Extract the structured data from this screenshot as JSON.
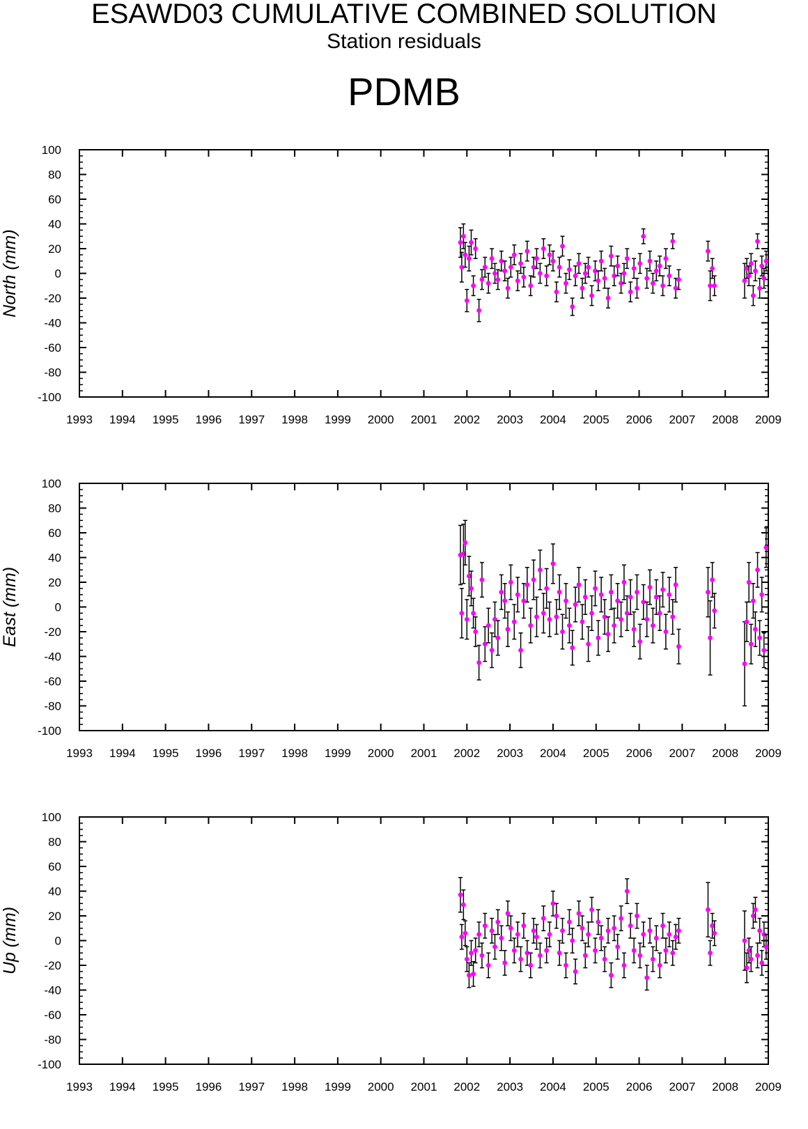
{
  "header": {
    "title": "ESAWD03 CUMULATIVE COMBINED SOLUTION",
    "subtitle": "Station residuals",
    "station": "PDMB"
  },
  "colors": {
    "point": "#ff00ff",
    "errorbar": "#000000",
    "axis": "#000000"
  },
  "chart_data": [
    {
      "type": "scatter",
      "component": "north",
      "ylabel": "North (mm)",
      "xlim": [
        1993,
        2009
      ],
      "ylim": [
        -100,
        100
      ],
      "xticks": [
        "1993",
        "1994",
        "1995",
        "1996",
        "1997",
        "1998",
        "1999",
        "2000",
        "2001",
        "2002",
        "2003",
        "2004",
        "2005",
        "2006",
        "2007",
        "2008",
        "2009"
      ],
      "yticks": [
        "100",
        "80",
        "60",
        "40",
        "20",
        "0",
        "-20",
        "-40",
        "-60",
        "-80",
        "-100"
      ],
      "grid": false,
      "series": [
        {
          "x": [
            2001.85,
            2001.88,
            2001.92,
            2001.96,
            2002.0,
            2002.05,
            2002.1,
            2002.15,
            2002.2,
            2002.28,
            2002.35,
            2002.42,
            2002.5,
            2002.58,
            2002.65,
            2002.72,
            2002.8,
            2002.88,
            2002.95,
            2003.02,
            2003.1,
            2003.18,
            2003.25,
            2003.32,
            2003.4,
            2003.48,
            2003.55,
            2003.62,
            2003.7,
            2003.78,
            2003.85,
            2003.92,
            2004.0,
            2004.08,
            2004.15,
            2004.22,
            2004.3,
            2004.38,
            2004.45,
            2004.52,
            2004.6,
            2004.68,
            2004.75,
            2004.82,
            2004.9,
            2004.98,
            2005.05,
            2005.12,
            2005.2,
            2005.28,
            2005.35,
            2005.42,
            2005.5,
            2005.58,
            2005.65,
            2005.72,
            2005.8,
            2005.88,
            2005.95,
            2006.02,
            2006.1,
            2006.18,
            2006.25,
            2006.32,
            2006.4,
            2006.48,
            2006.55,
            2006.62,
            2006.7,
            2006.78,
            2006.85,
            2006.92,
            2007.6,
            2007.65,
            2007.7,
            2007.75,
            2008.45,
            2008.5,
            2008.55,
            2008.6,
            2008.65,
            2008.7,
            2008.75,
            2008.8,
            2008.85,
            2008.9,
            2008.95
          ],
          "y": [
            25,
            5,
            30,
            15,
            -22,
            12,
            25,
            -10,
            20,
            -30,
            -5,
            5,
            -8,
            12,
            0,
            -5,
            10,
            2,
            -12,
            5,
            15,
            -6,
            8,
            -3,
            18,
            -10,
            5,
            12,
            0,
            20,
            -2,
            15,
            10,
            -15,
            5,
            22,
            -8,
            3,
            -27,
            -2,
            8,
            -12,
            0,
            5,
            -18,
            2,
            -6,
            10,
            -4,
            -20,
            14,
            -2,
            6,
            -8,
            0,
            12,
            -15,
            4,
            -12,
            8,
            30,
            -4,
            10,
            -8,
            2,
            6,
            -10,
            12,
            -2,
            26,
            -12,
            -5,
            18,
            -10,
            4,
            -10,
            -6,
            4,
            -2,
            8,
            -18,
            2,
            26,
            -12,
            6,
            -4,
            10
          ],
          "err": [
            12,
            12,
            10,
            10,
            9,
            10,
            10,
            8,
            8,
            9,
            8,
            8,
            8,
            8,
            8,
            8,
            8,
            8,
            8,
            8,
            8,
            8,
            8,
            8,
            8,
            8,
            8,
            8,
            8,
            8,
            8,
            8,
            8,
            8,
            8,
            8,
            8,
            8,
            7,
            8,
            8,
            8,
            8,
            8,
            8,
            8,
            8,
            8,
            8,
            8,
            8,
            8,
            8,
            8,
            8,
            8,
            8,
            8,
            8,
            8,
            6,
            8,
            8,
            8,
            8,
            8,
            8,
            8,
            8,
            6,
            8,
            8,
            8,
            12,
            8,
            8,
            14,
            8,
            8,
            8,
            8,
            8,
            6,
            8,
            8,
            8,
            8
          ]
        }
      ]
    },
    {
      "type": "scatter",
      "component": "east",
      "ylabel": "East (mm)",
      "xlim": [
        1993,
        2009
      ],
      "ylim": [
        -100,
        100
      ],
      "xticks": [
        "1993",
        "1994",
        "1995",
        "1996",
        "1997",
        "1998",
        "1999",
        "2000",
        "2001",
        "2002",
        "2003",
        "2004",
        "2005",
        "2006",
        "2007",
        "2008",
        "2009"
      ],
      "yticks": [
        "100",
        "80",
        "60",
        "40",
        "20",
        "0",
        "-20",
        "-40",
        "-60",
        "-80",
        "-100"
      ],
      "grid": false,
      "series": [
        {
          "x": [
            2001.85,
            2001.88,
            2001.92,
            2001.96,
            2002.0,
            2002.05,
            2002.1,
            2002.15,
            2002.2,
            2002.28,
            2002.35,
            2002.42,
            2002.5,
            2002.58,
            2002.65,
            2002.72,
            2002.8,
            2002.88,
            2002.95,
            2003.02,
            2003.1,
            2003.18,
            2003.25,
            2003.32,
            2003.4,
            2003.48,
            2003.55,
            2003.62,
            2003.7,
            2003.78,
            2003.85,
            2003.92,
            2004.0,
            2004.08,
            2004.15,
            2004.22,
            2004.3,
            2004.38,
            2004.45,
            2004.52,
            2004.6,
            2004.68,
            2004.75,
            2004.82,
            2004.9,
            2004.98,
            2005.05,
            2005.12,
            2005.2,
            2005.28,
            2005.35,
            2005.42,
            2005.5,
            2005.58,
            2005.65,
            2005.72,
            2005.8,
            2005.88,
            2005.95,
            2006.02,
            2006.1,
            2006.18,
            2006.25,
            2006.32,
            2006.4,
            2006.48,
            2006.55,
            2006.62,
            2006.7,
            2006.78,
            2006.85,
            2006.92,
            2007.6,
            2007.65,
            2007.7,
            2007.75,
            2008.45,
            2008.5,
            2008.55,
            2008.6,
            2008.65,
            2008.7,
            2008.75,
            2008.8,
            2008.85,
            2008.9,
            2008.95
          ],
          "y": [
            42,
            -5,
            43,
            52,
            -10,
            25,
            15,
            -5,
            -20,
            -45,
            22,
            -30,
            -15,
            -35,
            -10,
            -25,
            12,
            5,
            -18,
            20,
            -12,
            10,
            -35,
            5,
            18,
            -15,
            22,
            -8,
            30,
            -5,
            15,
            -10,
            35,
            -8,
            12,
            -20,
            5,
            -15,
            -33,
            2,
            18,
            -12,
            8,
            -30,
            -5,
            15,
            -25,
            10,
            -8,
            -22,
            12,
            -15,
            5,
            -10,
            20,
            -5,
            8,
            -18,
            12,
            -28,
            4,
            -10,
            16,
            -15,
            8,
            -5,
            14,
            -20,
            10,
            -8,
            18,
            -32,
            12,
            -25,
            22,
            -3,
            -46,
            -12,
            20,
            -30,
            5,
            -18,
            30,
            -25,
            10,
            -35,
            48
          ],
          "err": [
            24,
            20,
            24,
            18,
            16,
            16,
            14,
            12,
            12,
            14,
            14,
            14,
            14,
            14,
            14,
            14,
            14,
            14,
            14,
            14,
            14,
            14,
            14,
            14,
            14,
            14,
            16,
            16,
            16,
            16,
            16,
            14,
            16,
            14,
            14,
            14,
            14,
            14,
            14,
            14,
            14,
            14,
            14,
            14,
            14,
            14,
            14,
            14,
            14,
            14,
            14,
            14,
            14,
            14,
            14,
            14,
            14,
            14,
            14,
            14,
            14,
            14,
            14,
            14,
            14,
            14,
            14,
            14,
            14,
            14,
            14,
            14,
            20,
            30,
            14,
            14,
            34,
            16,
            16,
            16,
            14,
            14,
            14,
            14,
            14,
            14,
            16
          ]
        }
      ]
    },
    {
      "type": "scatter",
      "component": "up",
      "ylabel": "Up (mm)",
      "xlim": [
        1993,
        2009
      ],
      "ylim": [
        -100,
        100
      ],
      "xticks": [
        "1993",
        "1994",
        "1995",
        "1996",
        "1997",
        "1998",
        "1999",
        "2000",
        "2001",
        "2002",
        "2003",
        "2004",
        "2005",
        "2006",
        "2007",
        "2008",
        "2009"
      ],
      "yticks": [
        "100",
        "80",
        "60",
        "40",
        "20",
        "0",
        "-20",
        "-40",
        "-60",
        "-80",
        "-100"
      ],
      "grid": false,
      "series": [
        {
          "x": [
            2001.85,
            2001.88,
            2001.92,
            2001.96,
            2002.0,
            2002.05,
            2002.1,
            2002.15,
            2002.2,
            2002.28,
            2002.35,
            2002.42,
            2002.5,
            2002.58,
            2002.65,
            2002.72,
            2002.8,
            2002.88,
            2002.95,
            2003.02,
            2003.1,
            2003.18,
            2003.25,
            2003.32,
            2003.4,
            2003.48,
            2003.55,
            2003.62,
            2003.7,
            2003.78,
            2003.85,
            2003.92,
            2004.0,
            2004.08,
            2004.15,
            2004.22,
            2004.3,
            2004.38,
            2004.45,
            2004.52,
            2004.6,
            2004.68,
            2004.75,
            2004.82,
            2004.9,
            2004.98,
            2005.05,
            2005.12,
            2005.2,
            2005.28,
            2005.35,
            2005.42,
            2005.5,
            2005.58,
            2005.65,
            2005.72,
            2005.8,
            2005.88,
            2005.95,
            2006.02,
            2006.1,
            2006.18,
            2006.25,
            2006.32,
            2006.4,
            2006.48,
            2006.55,
            2006.62,
            2006.7,
            2006.78,
            2006.85,
            2006.92,
            2007.6,
            2007.65,
            2007.7,
            2007.75,
            2008.45,
            2008.5,
            2008.55,
            2008.6,
            2008.65,
            2008.7,
            2008.75,
            2008.8,
            2008.85,
            2008.9,
            2008.95
          ],
          "y": [
            37,
            3,
            29,
            6,
            -15,
            -28,
            -10,
            -27,
            -8,
            5,
            -12,
            12,
            -20,
            8,
            -5,
            15,
            2,
            -18,
            22,
            10,
            -8,
            5,
            -15,
            12,
            -10,
            -20,
            8,
            3,
            -12,
            18,
            -8,
            5,
            30,
            20,
            -10,
            8,
            -20,
            15,
            0,
            -25,
            22,
            10,
            -12,
            5,
            25,
            -8,
            15,
            2,
            -15,
            8,
            -28,
            10,
            -5,
            18,
            -20,
            40,
            12,
            -8,
            20,
            -12,
            5,
            -30,
            8,
            -15,
            2,
            -20,
            12,
            -8,
            5,
            -10,
            3,
            8,
            25,
            -10,
            12,
            6,
            0,
            -22,
            -8,
            -15,
            20,
            25,
            -12,
            8,
            -18,
            5,
            -5
          ],
          "err": [
            14,
            10,
            12,
            10,
            10,
            10,
            10,
            10,
            10,
            10,
            10,
            10,
            10,
            10,
            10,
            10,
            10,
            10,
            10,
            10,
            10,
            10,
            10,
            10,
            10,
            10,
            10,
            10,
            10,
            10,
            10,
            10,
            10,
            10,
            10,
            10,
            10,
            10,
            10,
            10,
            10,
            10,
            10,
            10,
            10,
            10,
            10,
            10,
            10,
            10,
            10,
            10,
            10,
            10,
            10,
            10,
            10,
            10,
            10,
            10,
            10,
            10,
            10,
            10,
            10,
            10,
            10,
            10,
            10,
            10,
            10,
            10,
            22,
            10,
            10,
            10,
            24,
            12,
            10,
            10,
            10,
            10,
            10,
            10,
            10,
            10,
            10
          ]
        }
      ]
    }
  ]
}
